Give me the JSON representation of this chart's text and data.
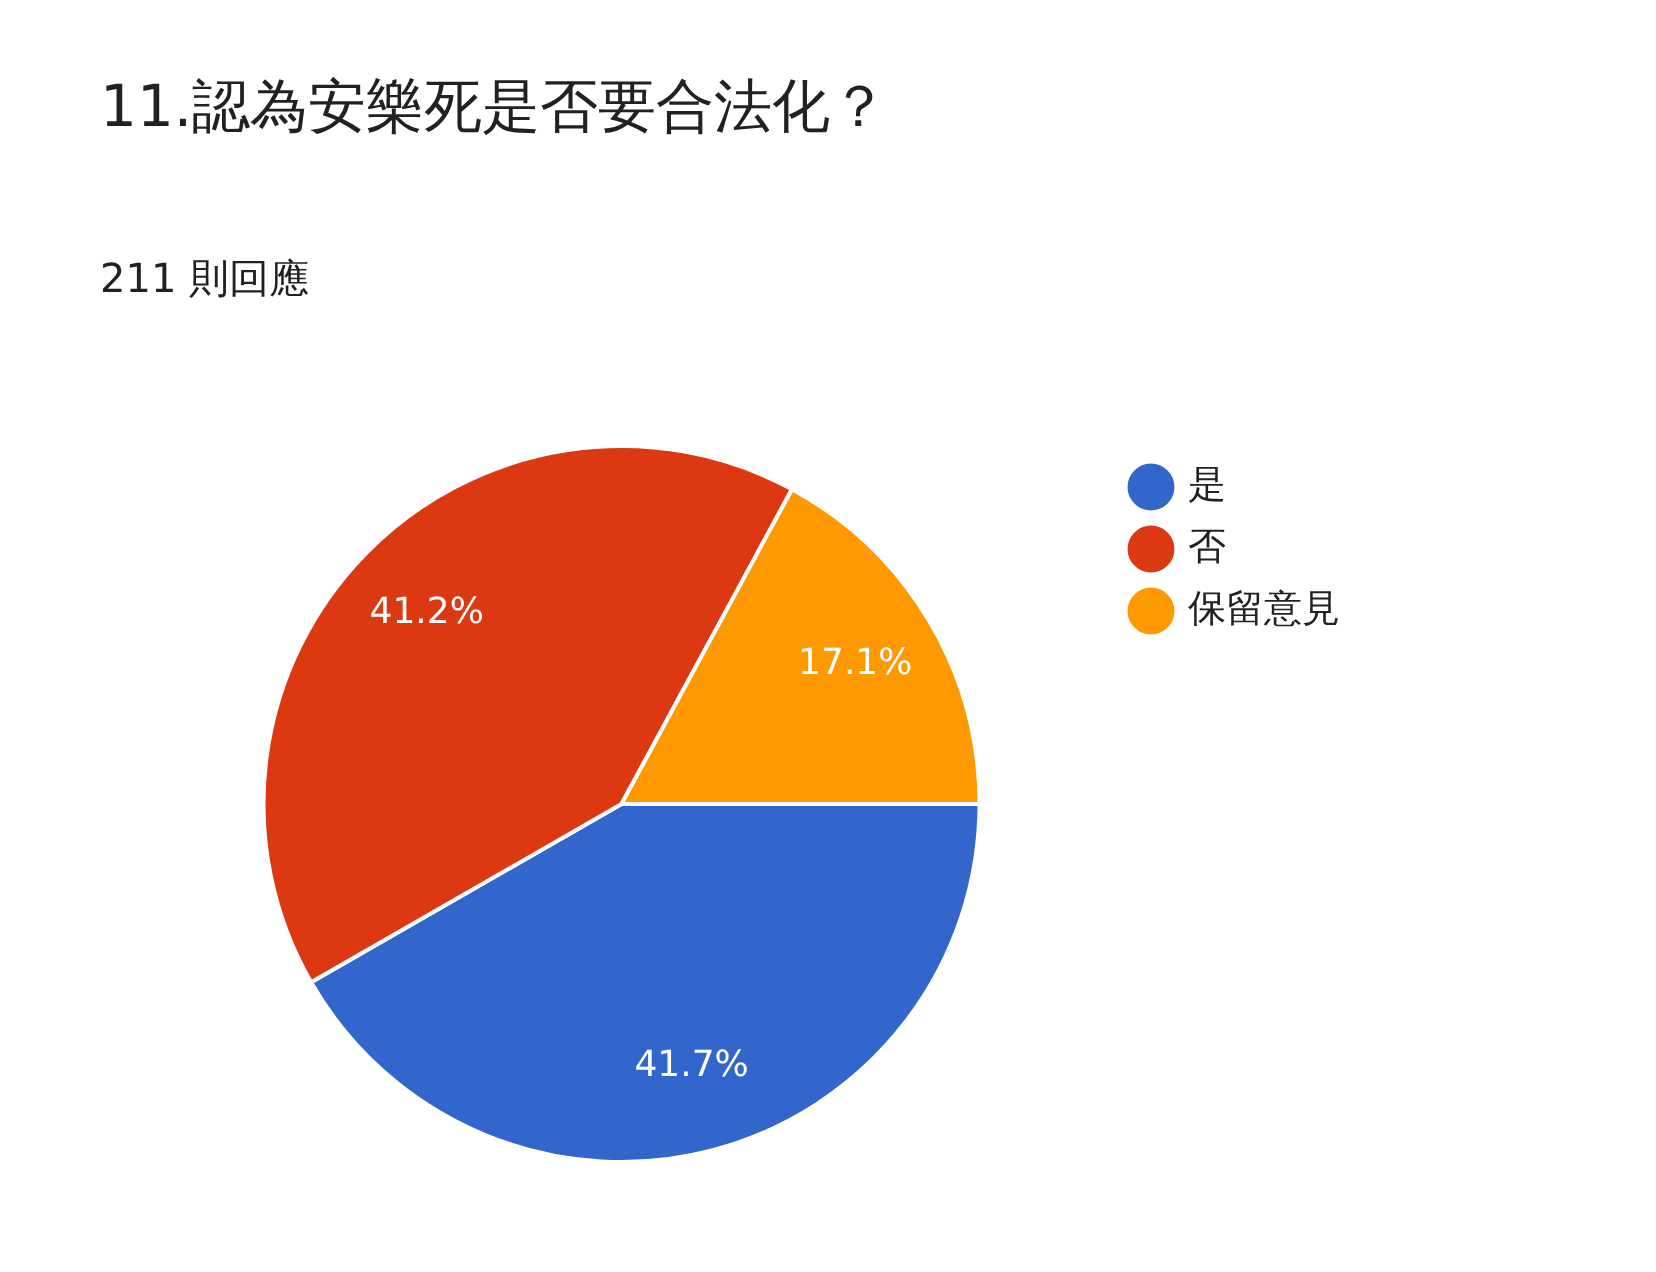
{
  "chart_data": {
    "type": "pie",
    "title": "11.認為安樂死是否要合法化？",
    "subtitle": "211 則回應",
    "categories": [
      "是",
      "否",
      "保留意見"
    ],
    "values": [
      41.7,
      41.2,
      17.1
    ],
    "value_labels": [
      "41.7%",
      "41.2%",
      "17.1%"
    ],
    "colors": [
      "#3366cc",
      "#dc3912",
      "#ff9900"
    ],
    "legend": "top right"
  }
}
